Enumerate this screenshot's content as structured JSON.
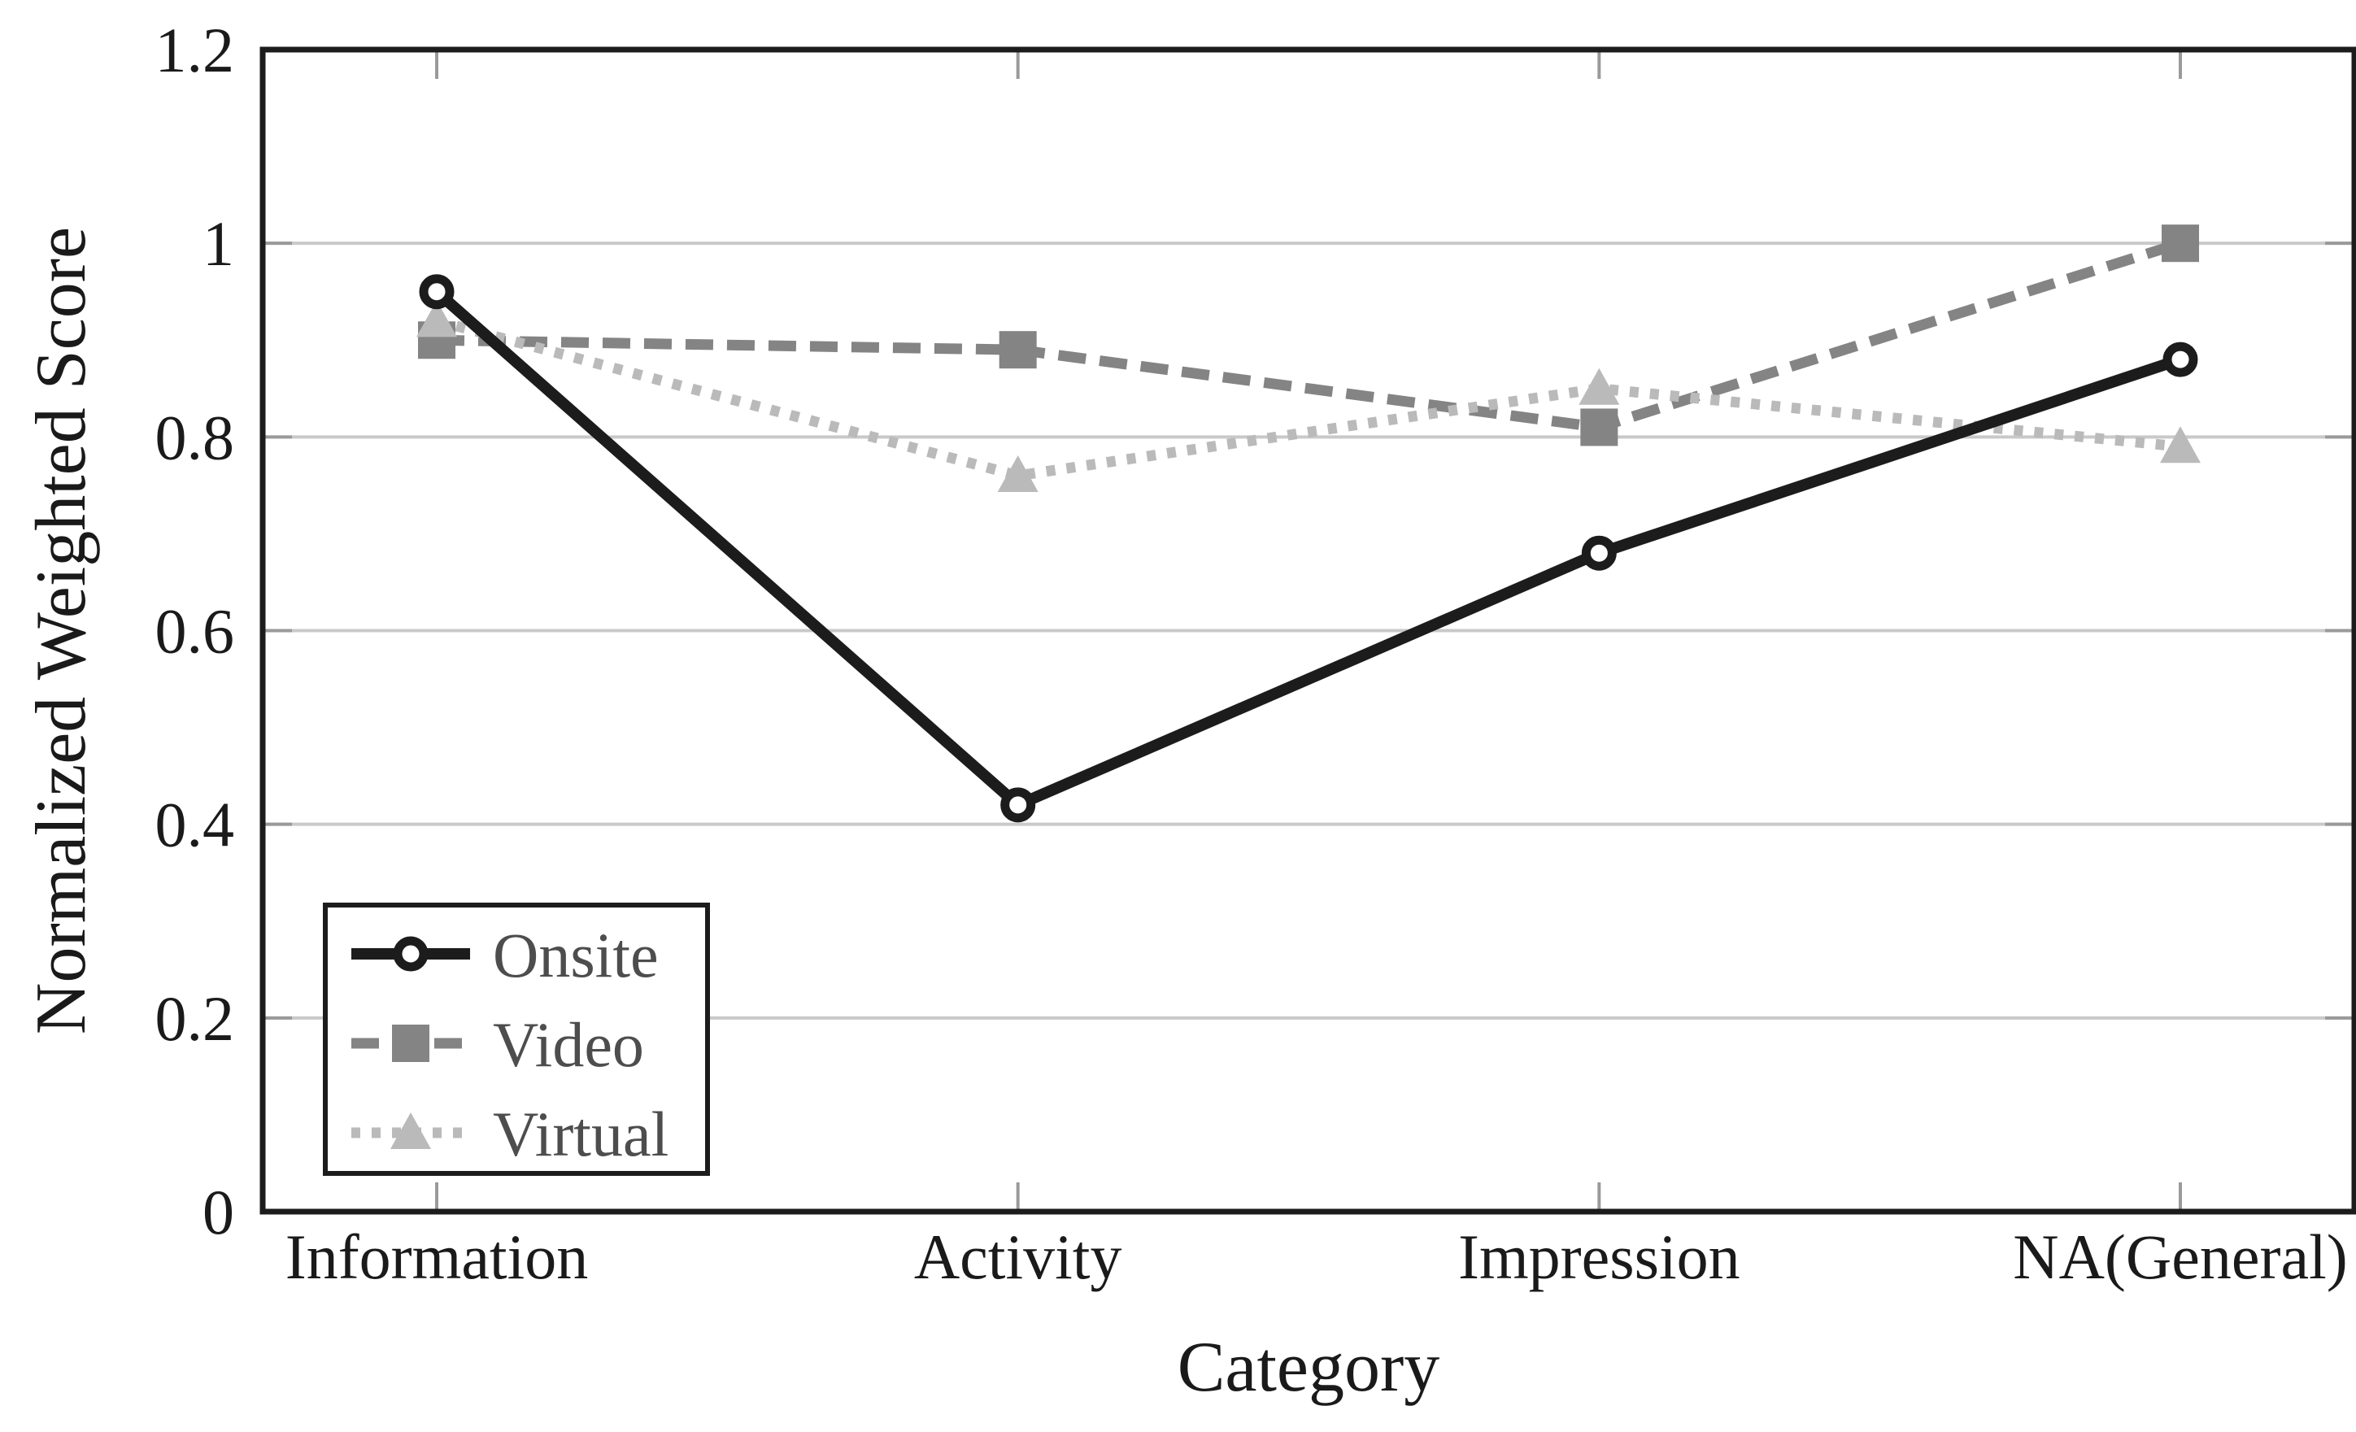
{
  "chart_data": {
    "type": "line",
    "title": "",
    "xlabel": "Category",
    "ylabel": "Normalized Weighted Score",
    "categories": [
      "Information",
      "Activity",
      "Impression",
      "NA(General)"
    ],
    "ylim": [
      0,
      1.2
    ],
    "yticks": [
      0,
      0.2,
      0.4,
      0.6,
      0.8,
      1,
      1.2
    ],
    "ytick_labels": [
      "0",
      "0.2",
      "0.4",
      "0.6",
      "0.8",
      "1",
      "1.2"
    ],
    "grid": "horizontal",
    "legend_position": "lower-left",
    "series": [
      {
        "name": "Onsite",
        "line_style": "solid",
        "marker": "open-circle",
        "color": "#1c1c1c",
        "values": [
          0.95,
          0.42,
          0.68,
          0.88
        ]
      },
      {
        "name": "Video",
        "line_style": "dashed",
        "marker": "filled-square",
        "color": "#848484",
        "values": [
          0.9,
          0.89,
          0.81,
          1.0
        ]
      },
      {
        "name": "Virtual",
        "line_style": "dotted",
        "marker": "filled-triangle",
        "color": "#bababa",
        "values": [
          0.92,
          0.76,
          0.85,
          0.79
        ]
      }
    ],
    "colors": {
      "axis": "#1c1c1c",
      "grid": "#c9c9c9",
      "tick": "#9a9a9a",
      "text": "#1a1a1a",
      "legend_text": "#4d4d4d",
      "background": "#ffffff"
    }
  }
}
